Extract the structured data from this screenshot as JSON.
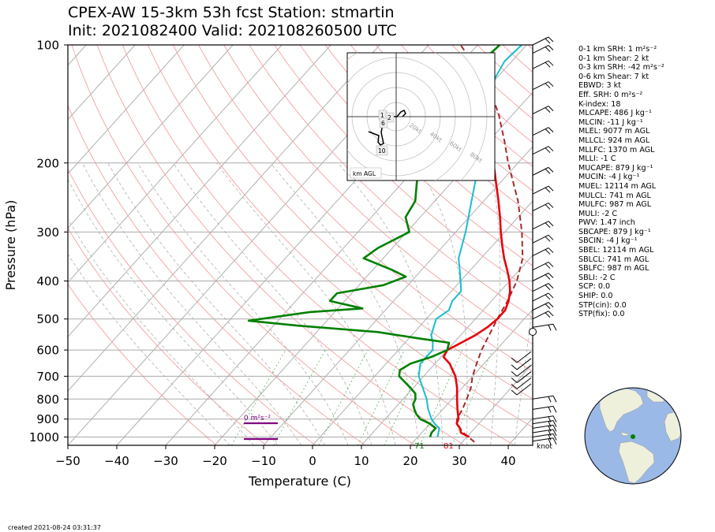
{
  "title": {
    "line1": "CPEX-AW 15-3km  53h fcst  Station: stmartin",
    "line2": "Init: 2021082400  Valid: 202108260500 UTC"
  },
  "footer": {
    "created": "created 2021-08-24 03:31:37"
  },
  "colors": {
    "temperature": "#e8000b",
    "dewpoint": "#008000",
    "wetbulb": "#17becf",
    "parcel": "#a52a2a",
    "shear_bar": "#800080",
    "dry_adiabat": "#f4a0a0",
    "moist_adiabat": "#b0b0b0",
    "mixing_ratio": "#2ca02c",
    "isotherm": "#b0b0b0",
    "globe_ocean": "#9bb9e6",
    "globe_land": "#eef0dc",
    "station_marker": "#008000"
  },
  "chart_data": {
    "type": "line",
    "subtype": "skew-T log-P sounding",
    "xlabel": "Temperature (C)",
    "ylabel": "Pressure (hPa)",
    "xlim": [
      -50,
      45
    ],
    "ylim": [
      1050,
      100
    ],
    "y_scale": "log",
    "x_ticks": [
      "−50",
      "−40",
      "−30",
      "−20",
      "−10",
      "0",
      "10",
      "20",
      "30",
      "40"
    ],
    "y_ticks": [
      "100",
      "200",
      "300",
      "400",
      "500",
      "600",
      "700",
      "800",
      "900",
      "1000"
    ],
    "grid": true,
    "series": [
      {
        "key": "temperature",
        "color": "#e8000b",
        "points": [
          [
            1000,
            30.5
          ],
          [
            975,
            28
          ],
          [
            950,
            27
          ],
          [
            925,
            25.5
          ],
          [
            900,
            25
          ],
          [
            875,
            24
          ],
          [
            850,
            23
          ],
          [
            800,
            21
          ],
          [
            750,
            19
          ],
          [
            700,
            16.5
          ],
          [
            650,
            13
          ],
          [
            625,
            10.5
          ],
          [
            600,
            10
          ],
          [
            575,
            11.5
          ],
          [
            550,
            13
          ],
          [
            525,
            14
          ],
          [
            500,
            14.5
          ],
          [
            475,
            14.5
          ],
          [
            450,
            13.5
          ],
          [
            425,
            12
          ],
          [
            400,
            10
          ],
          [
            375,
            7.5
          ],
          [
            350,
            4.7
          ],
          [
            325,
            2
          ],
          [
            300,
            -0.8
          ],
          [
            275,
            -3.7
          ],
          [
            250,
            -7
          ],
          [
            225,
            -10.8
          ],
          [
            200,
            -15
          ]
        ]
      },
      {
        "key": "dewpoint",
        "color": "#008000",
        "points": [
          [
            1000,
            22.5
          ],
          [
            975,
            22
          ],
          [
            950,
            22
          ],
          [
            925,
            20
          ],
          [
            900,
            17.2
          ],
          [
            875,
            15.5
          ],
          [
            850,
            14.2
          ],
          [
            825,
            13
          ],
          [
            800,
            12.5
          ],
          [
            775,
            11.5
          ],
          [
            750,
            9.5
          ],
          [
            700,
            5
          ],
          [
            675,
            4
          ],
          [
            650,
            5
          ],
          [
            625,
            8
          ],
          [
            600,
            10
          ],
          [
            575,
            9
          ],
          [
            560,
            1.8
          ],
          [
            540,
            -7.5
          ],
          [
            520,
            -25
          ],
          [
            505,
            -36
          ],
          [
            480,
            -25
          ],
          [
            470,
            -15
          ],
          [
            450,
            -23
          ],
          [
            430,
            -23
          ],
          [
            420,
            -19
          ],
          [
            410,
            -15
          ],
          [
            390,
            -12
          ],
          [
            375,
            -16
          ],
          [
            350,
            -24
          ],
          [
            330,
            -23
          ],
          [
            300,
            -19.5
          ],
          [
            275,
            -23
          ],
          [
            250,
            -24
          ],
          [
            225,
            -27
          ],
          [
            200,
            -30
          ],
          [
            175,
            -33
          ],
          [
            150,
            -35
          ],
          [
            125,
            -36
          ],
          [
            110,
            -36
          ],
          [
            100,
            -35.5
          ]
        ]
      },
      {
        "key": "wetbulb",
        "color": "#17becf",
        "points": [
          [
            1000,
            24
          ],
          [
            950,
            22.8
          ],
          [
            925,
            21
          ],
          [
            900,
            19.5
          ],
          [
            850,
            17
          ],
          [
            800,
            14.8
          ],
          [
            750,
            12
          ],
          [
            700,
            9
          ],
          [
            650,
            7
          ],
          [
            600,
            7
          ],
          [
            575,
            5.7
          ],
          [
            550,
            4
          ],
          [
            525,
            3
          ],
          [
            500,
            2
          ],
          [
            475,
            3
          ],
          [
            450,
            2
          ],
          [
            425,
            2
          ],
          [
            400,
            0
          ],
          [
            375,
            -2.2
          ],
          [
            350,
            -4.6
          ],
          [
            300,
            -8
          ],
          [
            250,
            -12.5
          ],
          [
            200,
            -18
          ],
          [
            175,
            -22
          ],
          [
            150,
            -26.5
          ],
          [
            125,
            -30
          ],
          [
            110,
            -31.5
          ],
          [
            100,
            -31
          ]
        ]
      },
      {
        "key": "parcel",
        "color": "#a52a2a",
        "dashed": true,
        "points": [
          [
            1030,
            32.5
          ],
          [
            975,
            28.5
          ],
          [
            925,
            25.5
          ],
          [
            900,
            24.7
          ],
          [
            850,
            24
          ],
          [
            800,
            23
          ],
          [
            750,
            21.8
          ],
          [
            700,
            20
          ],
          [
            650,
            18.5
          ],
          [
            600,
            17
          ],
          [
            550,
            15.8
          ],
          [
            500,
            14.5
          ],
          [
            450,
            13.3
          ],
          [
            400,
            11.5
          ],
          [
            350,
            8.5
          ],
          [
            300,
            3.5
          ],
          [
            250,
            -3
          ],
          [
            200,
            -12
          ],
          [
            175,
            -17
          ],
          [
            150,
            -23
          ],
          [
            125,
            -31
          ],
          [
            100,
            -43.5
          ]
        ]
      }
    ],
    "annotations": {
      "sfc_temp_label": "81",
      "sfc_dewpoint_label": "71",
      "shear_label": "0 m²s⁻²",
      "wind_units": "knot",
      "hodograph": {
        "agl_label": "km AGL",
        "rings": [
          "20kt",
          "40kt",
          "60kt",
          "80kt"
        ],
        "height_labels": [
          "1",
          "2",
          "6",
          "10"
        ]
      }
    },
    "wind_barbs_pressure_hPa": [
      100,
      105,
      115,
      130,
      150,
      170,
      190,
      215,
      240,
      265,
      295,
      320,
      345,
      375,
      400,
      425,
      450,
      475,
      500,
      525,
      600,
      625,
      650,
      675,
      700,
      725,
      800,
      850,
      900,
      925,
      950,
      975,
      1000,
      1025
    ]
  },
  "stats": [
    "0-1 km SRH: 1 m²s⁻²",
    "0-1 km Shear: 2 kt",
    "0-3 km SRH: -42 m²s⁻²",
    "0-6 km Shear: 7 kt",
    "EBWD: 3 kt",
    "Eff. SRH: 0 m²s⁻²",
    "K-index: 18",
    "MLCAPE: 486 J kg⁻¹",
    "MLCIN: -11 J kg⁻¹",
    "MLEL: 9077 m AGL",
    "MLLCL: 924 m AGL",
    "MLLFC: 1370 m AGL",
    "MLLI: -1 C",
    "MUCAPE: 879 J kg⁻¹",
    "MUCIN: -4 J kg⁻¹",
    "MUEL: 12114 m AGL",
    "MULCL: 741 m AGL",
    "MULFC: 987 m AGL",
    "MULI: -2 C",
    "PWV: 1.47 inch",
    "SBCAPE: 879 J kg⁻¹",
    "SBCIN: -4 J kg⁻¹",
    "SBEL: 12114 m AGL",
    "SBLCL: 741 m AGL",
    "SBLFC: 987 m AGL",
    "SBLI: -2 C",
    "SCP: 0.0",
    "SHIP: 0.0",
    "STP(cin): 0.0",
    "STP(fix): 0.0"
  ]
}
